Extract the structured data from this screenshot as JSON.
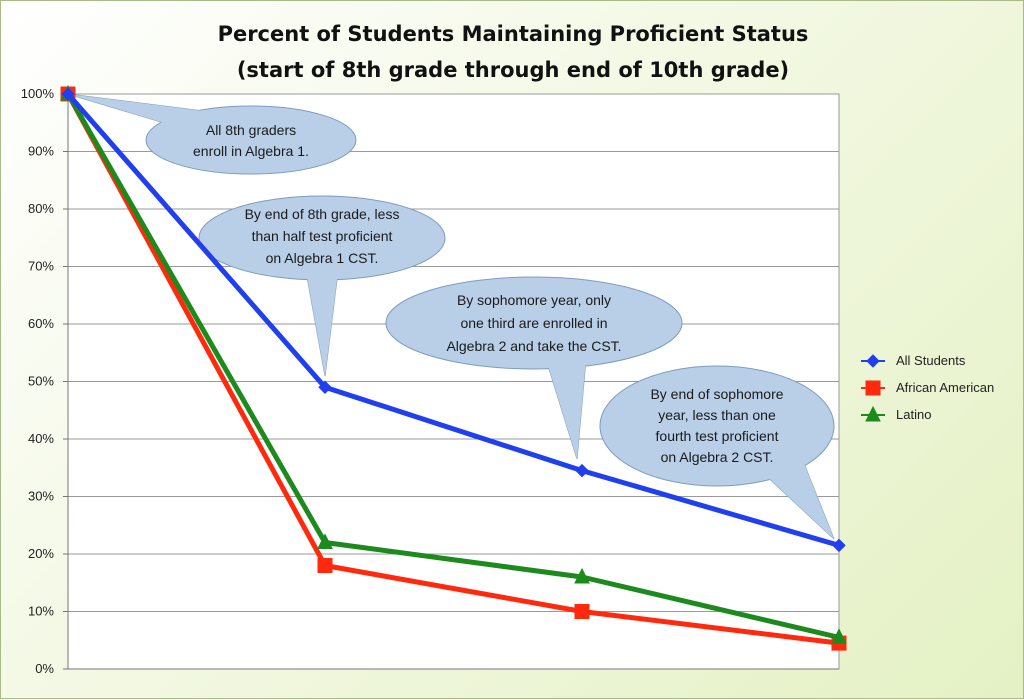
{
  "chart_data": {
    "type": "line",
    "title": [
      "Percent of Students Maintaining Proficient Status",
      "(start of 8th grade through end of 10th grade)"
    ],
    "x": [
      1,
      2,
      3,
      4
    ],
    "xlabel": "",
    "ylabel": "",
    "ylim": [
      0,
      100
    ],
    "yticks": [
      "0%",
      "10%",
      "20%",
      "30%",
      "40%",
      "50%",
      "60%",
      "70%",
      "80%",
      "90%",
      "100%"
    ],
    "grid": true,
    "legend_position": "right",
    "series": [
      {
        "name": "All Students",
        "values": [
          100,
          49,
          34.5,
          21.5
        ],
        "color": "#1f3ff0",
        "marker": "diamond"
      },
      {
        "name": "African American",
        "values": [
          100,
          18,
          10,
          4.5
        ],
        "color": "#ff2a0e",
        "marker": "square"
      },
      {
        "name": "Latino",
        "values": [
          100,
          22,
          16,
          5.5
        ],
        "color": "#1d8a1d",
        "marker": "triangle"
      }
    ],
    "annotations": [
      {
        "lines": [
          "All 8th graders",
          "enroll in Algebra 1."
        ]
      },
      {
        "lines": [
          "By end of 8th grade, less",
          "than half test proficient",
          "on Algebra 1 CST."
        ]
      },
      {
        "lines": [
          "By sophomore year, only",
          "one third are enrolled in",
          "Algebra 2 and take the CST."
        ]
      },
      {
        "lines": [
          "By end of sophomore",
          "year, less than one",
          "fourth test proficient",
          "on Algebra 2 CST."
        ]
      }
    ]
  }
}
